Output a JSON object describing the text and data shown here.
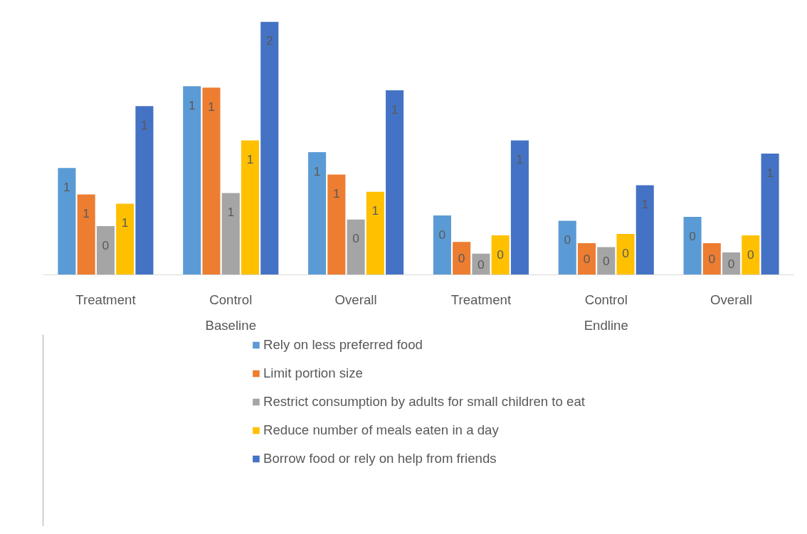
{
  "chart_data": {
    "type": "bar",
    "categories": [
      "Treatment",
      "Control",
      "Overall",
      "Treatment",
      "Control",
      "Overall"
    ],
    "annotations": [
      "Baseline",
      "Endline"
    ],
    "series": [
      {
        "name": "Rely on less preferred food",
        "color": "#5b9bd5",
        "values": [
          0.81,
          1.43,
          0.93,
          0.45,
          0.41,
          0.44
        ],
        "value_labels": [
          "1",
          "1",
          "1",
          "0",
          "0",
          "0"
        ]
      },
      {
        "name": "Limit portion size",
        "color": "#ed7d31",
        "values": [
          0.61,
          1.42,
          0.76,
          0.25,
          0.24,
          0.24
        ],
        "value_labels": [
          "1",
          "1",
          "1",
          "0",
          "0",
          "0"
        ]
      },
      {
        "name": "Restrict consumption by adults for small children to eat",
        "color": "#a5a5a5",
        "values": [
          0.37,
          0.62,
          0.42,
          0.16,
          0.21,
          0.17
        ],
        "value_labels": [
          "0",
          "1",
          "0",
          "0",
          "0",
          "0"
        ]
      },
      {
        "name": "Reduce number of meals eaten in a day",
        "color": "#ffc000",
        "values": [
          0.54,
          1.02,
          0.63,
          0.3,
          0.31,
          0.3
        ],
        "value_labels": [
          "1",
          "1",
          "1",
          "0",
          "0",
          "0"
        ]
      },
      {
        "name": "Borrow food or rely on help from friends",
        "color": "#4472c4",
        "values": [
          1.28,
          1.92,
          1.4,
          1.02,
          0.68,
          0.92
        ],
        "value_labels": [
          "1",
          "2",
          "1",
          "1",
          "1",
          "1"
        ]
      }
    ],
    "legend": "bottom"
  }
}
